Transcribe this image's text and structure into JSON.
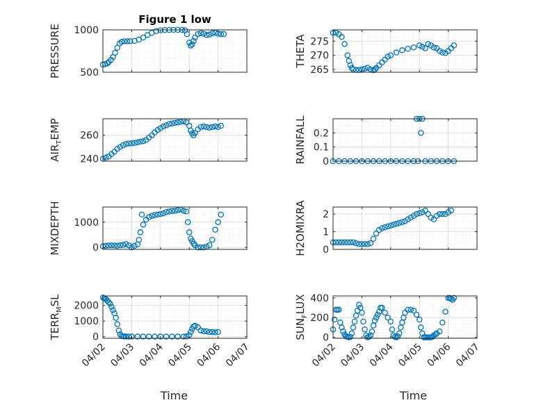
{
  "figure": {
    "title": "Figure 1 low",
    "marker_color": "#0072BD",
    "x_axis_label": "Time",
    "x_tick_labels": [
      "04/02",
      "04/03",
      "04/04",
      "04/05",
      "04/06",
      "04/07"
    ]
  },
  "chart_data": [
    {
      "type": "scatter",
      "title": "Figure 1 low",
      "ylabel": "PRESSURE",
      "ylim": [
        500,
        1000
      ],
      "yticks": [
        500,
        1000
      ],
      "xlim": [
        0,
        5
      ],
      "grid": true,
      "x": [
        0.0,
        0.08,
        0.15,
        0.2,
        0.28,
        0.35,
        0.42,
        0.5,
        0.58,
        0.65,
        0.75,
        0.85,
        0.95,
        1.1,
        1.25,
        1.4,
        1.55,
        1.7,
        1.85,
        2.0,
        2.15,
        2.3,
        2.45,
        2.6,
        2.75,
        2.85,
        2.92,
        3.0,
        3.05,
        3.1,
        3.15,
        3.2,
        3.3,
        3.4,
        3.5,
        3.6,
        3.7,
        3.8,
        3.9,
        4.0,
        4.1,
        4.2
      ],
      "y": [
        590,
        595,
        605,
        620,
        645,
        680,
        730,
        790,
        840,
        860,
        865,
        866,
        867,
        870,
        885,
        910,
        940,
        965,
        985,
        995,
        998,
        999,
        1000,
        1000,
        1000,
        995,
        950,
        850,
        815,
        830,
        870,
        910,
        950,
        960,
        955,
        940,
        945,
        960,
        965,
        955,
        950,
        950
      ]
    },
    {
      "type": "scatter",
      "ylabel": "THETA",
      "ylim": [
        264,
        279
      ],
      "yticks": [
        265,
        270,
        275
      ],
      "xlim": [
        0,
        5
      ],
      "grid": true,
      "x": [
        0.0,
        0.1,
        0.2,
        0.3,
        0.4,
        0.5,
        0.55,
        0.6,
        0.65,
        0.7,
        0.8,
        0.9,
        1.0,
        1.1,
        1.2,
        1.3,
        1.4,
        1.45,
        1.5,
        1.6,
        1.7,
        1.8,
        1.9,
        2.0,
        2.2,
        2.4,
        2.6,
        2.8,
        3.0,
        3.1,
        3.2,
        3.3,
        3.4,
        3.5,
        3.6,
        3.7,
        3.8,
        3.9,
        4.0,
        4.1,
        4.2
      ],
      "y": [
        278,
        278,
        277.5,
        276.5,
        274,
        270,
        268,
        266.5,
        265.5,
        265,
        264.8,
        264.8,
        265,
        265.3,
        265.6,
        265,
        264.7,
        265,
        265.5,
        266.5,
        267.5,
        268.5,
        269.5,
        270,
        271,
        271.8,
        272.3,
        272.8,
        273.5,
        273,
        272.5,
        274,
        273.5,
        272.8,
        272.5,
        271.5,
        271,
        270.8,
        271.5,
        272.5,
        273.5
      ]
    },
    {
      "type": "scatter",
      "ylabel": "AIR_TEMP",
      "ylim": [
        238,
        274
      ],
      "yticks": [
        240,
        260
      ],
      "xlim": [
        0,
        5
      ],
      "grid": true,
      "x": [
        0.0,
        0.1,
        0.2,
        0.3,
        0.4,
        0.5,
        0.6,
        0.7,
        0.8,
        0.9,
        1.0,
        1.1,
        1.2,
        1.3,
        1.4,
        1.5,
        1.6,
        1.7,
        1.8,
        1.9,
        2.0,
        2.1,
        2.2,
        2.3,
        2.4,
        2.5,
        2.6,
        2.7,
        2.8,
        2.9,
        3.0,
        3.05,
        3.1,
        3.15,
        3.2,
        3.3,
        3.4,
        3.5,
        3.6,
        3.7,
        3.8,
        3.9,
        4.0,
        4.1
      ],
      "y": [
        240,
        241,
        242,
        244,
        246,
        248.5,
        250,
        251.5,
        252.5,
        253,
        253.2,
        253.5,
        254,
        254.5,
        255,
        256,
        258,
        260,
        262.5,
        264.5,
        266,
        267.5,
        268.5,
        269.5,
        270,
        270.5,
        271,
        271.5,
        271.8,
        271,
        268,
        264,
        261.5,
        260,
        262,
        265,
        267,
        267.5,
        267,
        266.5,
        267,
        267.5,
        267,
        268
      ]
    },
    {
      "type": "scatter",
      "ylabel": "RAINFALL",
      "ylim": [
        0,
        0.3
      ],
      "yticks": [
        0,
        0.1,
        0.2
      ],
      "xlim": [
        0,
        5
      ],
      "grid": true,
      "x": [
        0.0,
        0.2,
        0.4,
        0.6,
        0.8,
        1.0,
        1.2,
        1.4,
        1.6,
        1.8,
        2.0,
        2.2,
        2.4,
        2.6,
        2.8,
        2.9,
        2.95,
        3.0,
        3.05,
        3.1,
        3.2,
        3.4,
        3.6,
        3.8,
        4.0,
        4.2
      ],
      "y": [
        0,
        0,
        0,
        0,
        0,
        0,
        0,
        0,
        0,
        0,
        0,
        0,
        0,
        0,
        0,
        0.3,
        0,
        0.3,
        0.2,
        0.3,
        0,
        0,
        0,
        0,
        0,
        0
      ]
    },
    {
      "type": "scatter",
      "ylabel": "MIXDEPTH",
      "ylim": [
        -80,
        1600
      ],
      "yticks": [
        0,
        1000
      ],
      "xlim": [
        0,
        5
      ],
      "grid": true,
      "x": [
        0.0,
        0.1,
        0.2,
        0.3,
        0.4,
        0.5,
        0.6,
        0.7,
        0.8,
        0.9,
        1.0,
        1.1,
        1.2,
        1.25,
        1.3,
        1.35,
        1.4,
        1.5,
        1.6,
        1.7,
        1.8,
        1.9,
        2.0,
        2.1,
        2.2,
        2.3,
        2.4,
        2.5,
        2.6,
        2.7,
        2.8,
        2.9,
        2.95,
        3.0,
        3.05,
        3.1,
        3.15,
        3.2,
        3.3,
        3.4,
        3.5,
        3.6,
        3.7,
        3.8,
        3.9,
        4.0,
        4.1
      ],
      "y": [
        40,
        60,
        70,
        80,
        70,
        60,
        80,
        100,
        130,
        80,
        0,
        60,
        120,
        300,
        600,
        1300,
        900,
        1100,
        1200,
        1250,
        1280,
        1300,
        1320,
        1350,
        1400,
        1420,
        1440,
        1450,
        1480,
        1500,
        1450,
        1420,
        1000,
        600,
        350,
        250,
        150,
        80,
        0,
        0,
        0,
        30,
        80,
        300,
        700,
        1000,
        1300
      ]
    },
    {
      "type": "scatter",
      "ylabel": "H2OMIXRA",
      "ylim": [
        0,
        2.4
      ],
      "yticks": [
        0,
        1,
        2
      ],
      "xlim": [
        0,
        5
      ],
      "grid": true,
      "x": [
        0.0,
        0.1,
        0.2,
        0.3,
        0.4,
        0.5,
        0.6,
        0.7,
        0.8,
        0.9,
        1.0,
        1.1,
        1.2,
        1.3,
        1.4,
        1.5,
        1.6,
        1.7,
        1.8,
        1.9,
        2.0,
        2.1,
        2.2,
        2.3,
        2.4,
        2.5,
        2.6,
        2.7,
        2.8,
        2.9,
        3.0,
        3.1,
        3.2,
        3.3,
        3.4,
        3.5,
        3.6,
        3.7,
        3.8,
        3.9,
        4.0,
        4.1
      ],
      "y": [
        0.4,
        0.4,
        0.4,
        0.4,
        0.4,
        0.4,
        0.4,
        0.4,
        0.35,
        0.3,
        0.3,
        0.3,
        0.3,
        0.35,
        0.6,
        0.9,
        1.1,
        1.2,
        1.25,
        1.3,
        1.35,
        1.4,
        1.45,
        1.5,
        1.55,
        1.6,
        1.7,
        1.8,
        1.9,
        2.0,
        2.05,
        2.1,
        2.2,
        2.0,
        1.8,
        1.7,
        1.9,
        2.0,
        2.0,
        2.0,
        2.1,
        2.2
      ]
    },
    {
      "type": "scatter",
      "ylabel": "TERR_MSL",
      "ylim": [
        -100,
        2600
      ],
      "yticks": [
        0,
        1000,
        2000
      ],
      "xlim": [
        0,
        5
      ],
      "grid": true,
      "x": [
        0.0,
        0.05,
        0.1,
        0.15,
        0.2,
        0.25,
        0.3,
        0.35,
        0.4,
        0.45,
        0.5,
        0.55,
        0.6,
        0.65,
        0.7,
        0.75,
        0.8,
        0.9,
        1.0,
        1.2,
        1.4,
        1.6,
        1.8,
        2.0,
        2.2,
        2.4,
        2.6,
        2.8,
        2.9,
        3.0,
        3.05,
        3.1,
        3.15,
        3.2,
        3.3,
        3.4,
        3.5,
        3.6,
        3.7,
        3.8,
        3.9,
        4.0
      ],
      "y": [
        2500,
        2450,
        2400,
        2300,
        2200,
        2100,
        1900,
        1700,
        1500,
        1200,
        800,
        400,
        150,
        50,
        30,
        20,
        10,
        10,
        10,
        10,
        10,
        10,
        10,
        10,
        10,
        10,
        10,
        10,
        20,
        100,
        300,
        500,
        650,
        700,
        600,
        400,
        350,
        350,
        300,
        300,
        280,
        300
      ]
    },
    {
      "type": "scatter",
      "ylabel": "SUN_FLUX",
      "ylim": [
        -10,
        420
      ],
      "yticks": [
        0,
        200,
        400
      ],
      "xlim": [
        0,
        5
      ],
      "grid": true,
      "x": [
        0.0,
        0.05,
        0.1,
        0.15,
        0.2,
        0.25,
        0.3,
        0.35,
        0.4,
        0.45,
        0.5,
        0.55,
        0.6,
        0.65,
        0.7,
        0.75,
        0.8,
        0.85,
        0.9,
        0.95,
        1.0,
        1.05,
        1.1,
        1.15,
        1.2,
        1.25,
        1.3,
        1.35,
        1.4,
        1.45,
        1.5,
        1.55,
        1.6,
        1.65,
        1.7,
        1.8,
        1.9,
        2.0,
        2.05,
        2.1,
        2.15,
        2.2,
        2.25,
        2.3,
        2.35,
        2.4,
        2.45,
        2.5,
        2.6,
        2.7,
        2.8,
        2.9,
        3.0,
        3.05,
        3.1,
        3.15,
        3.2,
        3.25,
        3.3,
        3.35,
        3.4,
        3.45,
        3.5,
        3.55,
        3.6,
        3.7,
        3.8,
        3.9,
        4.0,
        4.05,
        4.1,
        4.15,
        4.2
      ],
      "y": [
        80,
        180,
        280,
        280,
        280,
        150,
        100,
        60,
        30,
        10,
        5,
        0,
        5,
        40,
        100,
        160,
        220,
        270,
        330,
        300,
        250,
        160,
        80,
        20,
        0,
        5,
        20,
        60,
        120,
        170,
        200,
        230,
        260,
        300,
        300,
        250,
        200,
        160,
        80,
        20,
        5,
        0,
        10,
        40,
        100,
        150,
        200,
        250,
        280,
        280,
        270,
        230,
        180,
        100,
        40,
        0,
        0,
        0,
        0,
        0,
        0,
        5,
        20,
        30,
        40,
        60,
        150,
        260,
        400,
        400,
        390,
        380,
        400
      ]
    }
  ]
}
